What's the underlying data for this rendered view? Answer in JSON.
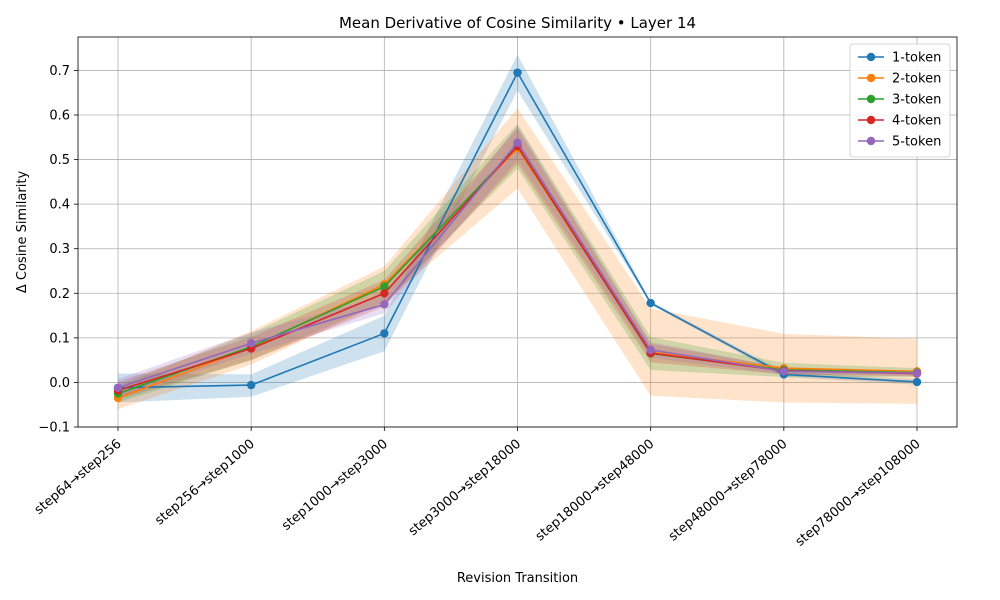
{
  "chart_data": {
    "type": "line",
    "title": "Mean Derivative of Cosine Similarity • Layer 14",
    "xlabel": "Revision Transition",
    "ylabel": "Δ Cosine Similarity",
    "categories": [
      "step64→step256",
      "step256→step1000",
      "step1000→step3000",
      "step3000→step18000",
      "step18000→step48000",
      "step48000→step78000",
      "step78000→step108000"
    ],
    "ylim": [
      -0.1,
      0.775
    ],
    "yticks": [
      -0.1,
      0.0,
      0.1,
      0.2,
      0.3,
      0.4,
      0.5,
      0.6,
      0.7
    ],
    "ytick_labels": [
      "−0.1",
      "0.0",
      "0.1",
      "0.2",
      "0.3",
      "0.4",
      "0.5",
      "0.6",
      "0.7"
    ],
    "grid": true,
    "legend_position": "top-right",
    "series": [
      {
        "name": "1-token",
        "color": "#1f77b4",
        "values": [
          -0.012,
          -0.006,
          0.11,
          0.695,
          0.178,
          0.018,
          0.001
        ],
        "lower": [
          -0.045,
          -0.032,
          0.07,
          0.655,
          0.175,
          0.012,
          -0.005
        ],
        "upper": [
          0.02,
          0.018,
          0.15,
          0.735,
          0.182,
          0.024,
          0.007
        ]
      },
      {
        "name": "2-token",
        "color": "#ff7f0e",
        "values": [
          -0.035,
          0.078,
          0.22,
          0.525,
          0.068,
          0.032,
          0.025
        ],
        "lower": [
          -0.06,
          0.04,
          0.18,
          0.435,
          -0.03,
          -0.045,
          -0.048
        ],
        "upper": [
          -0.01,
          0.115,
          0.26,
          0.615,
          0.166,
          0.109,
          0.098
        ]
      },
      {
        "name": "3-token",
        "color": "#2ca02c",
        "values": [
          -0.025,
          0.08,
          0.215,
          0.53,
          0.065,
          0.028,
          0.022
        ],
        "lower": [
          -0.045,
          0.05,
          0.18,
          0.48,
          0.028,
          0.012,
          0.012
        ],
        "upper": [
          -0.005,
          0.11,
          0.25,
          0.58,
          0.102,
          0.044,
          0.032
        ]
      },
      {
        "name": "4-token",
        "color": "#d62728",
        "values": [
          -0.018,
          0.076,
          0.2,
          0.53,
          0.066,
          0.026,
          0.02
        ],
        "lower": [
          -0.038,
          0.05,
          0.17,
          0.49,
          0.045,
          0.018,
          0.014
        ],
        "upper": [
          0.002,
          0.102,
          0.23,
          0.57,
          0.087,
          0.034,
          0.026
        ]
      },
      {
        "name": "5-token",
        "color": "#9467bd",
        "values": [
          -0.012,
          0.088,
          0.175,
          0.538,
          0.073,
          0.025,
          0.021
        ],
        "lower": [
          -0.032,
          0.064,
          0.155,
          0.5,
          0.055,
          0.018,
          0.015
        ],
        "upper": [
          0.008,
          0.112,
          0.195,
          0.576,
          0.091,
          0.032,
          0.027
        ]
      }
    ]
  }
}
